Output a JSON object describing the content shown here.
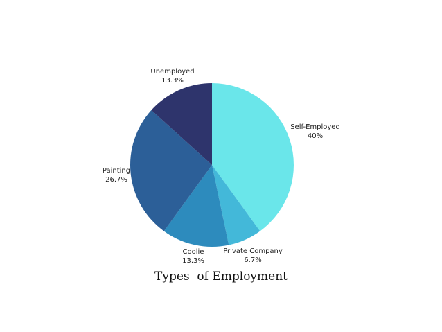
{
  "chart_data": {
    "type": "pie",
    "title": "Types  of Employment",
    "slices": [
      {
        "label": "Self-Employed",
        "value_label": "40%",
        "value": 40,
        "color": "#6ae6ea"
      },
      {
        "label": "Private Company",
        "value_label": "6.7%",
        "value": 6.7,
        "color": "#43b8d9"
      },
      {
        "label": "Coolie",
        "value_label": "13.3%",
        "value": 13.3,
        "color": "#2d8bbd"
      },
      {
        "label": "Painting",
        "value_label": "26.7%",
        "value": 26.7,
        "color": "#2c5f98"
      },
      {
        "label": "Unemployed",
        "value_label": "13.3%",
        "value": 13.3,
        "color": "#2e346c"
      }
    ]
  }
}
